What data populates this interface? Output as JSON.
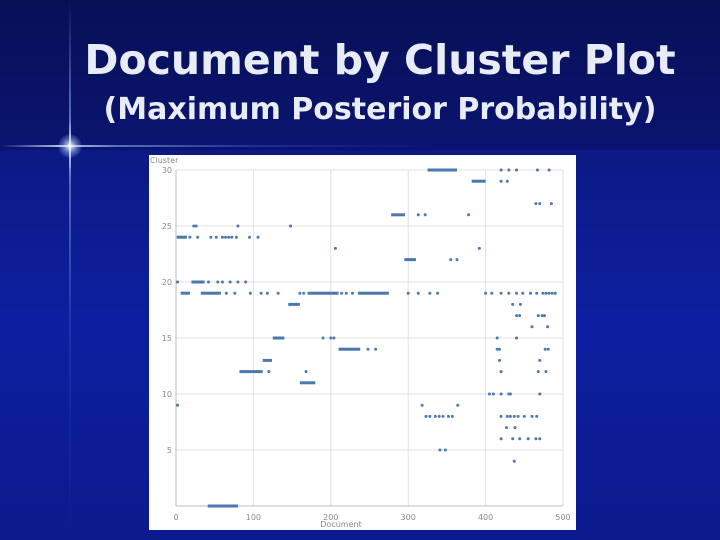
{
  "slide": {
    "title": "Document by Cluster Plot",
    "subtitle": "(Maximum Posterior Probability)"
  },
  "colors": {
    "point": "#4a78b0",
    "grid": "#e2e2e2",
    "axis_text": "#8a8a8a",
    "background": "#ffffff"
  },
  "chart_data": {
    "type": "scatter",
    "title": "",
    "xlabel": "Document",
    "ylabel": "Cluster",
    "xlim": [
      0,
      500
    ],
    "ylim": [
      0,
      30
    ],
    "x_ticks": [
      0,
      100,
      200,
      300,
      400,
      500
    ],
    "y_ticks": [
      5,
      10,
      15,
      20,
      25,
      30
    ],
    "x_tick_labels": [
      "0",
      "100",
      "200",
      "300",
      "400",
      "500"
    ],
    "y_tick_labels": [
      "5",
      "10",
      "15",
      "20",
      "25",
      "30"
    ],
    "grid": true,
    "series": [
      {
        "segments": [
          {
            "x0": 325,
            "x1": 363,
            "y": 30
          },
          {
            "x0": 382,
            "x1": 400,
            "y": 29
          },
          {
            "x0": 278,
            "x1": 296,
            "y": 26
          },
          {
            "x0": 1,
            "x1": 14,
            "y": 24
          },
          {
            "x0": 295,
            "x1": 310,
            "y": 22
          },
          {
            "x0": 20,
            "x1": 37,
            "y": 20
          },
          {
            "x0": 6,
            "x1": 18,
            "y": 19
          },
          {
            "x0": 32,
            "x1": 58,
            "y": 19
          },
          {
            "x0": 170,
            "x1": 210,
            "y": 19
          },
          {
            "x0": 235,
            "x1": 275,
            "y": 19
          },
          {
            "x0": 145,
            "x1": 160,
            "y": 18
          },
          {
            "x0": 125,
            "x1": 140,
            "y": 15
          },
          {
            "x0": 210,
            "x1": 238,
            "y": 14
          },
          {
            "x0": 112,
            "x1": 124,
            "y": 13
          },
          {
            "x0": 82,
            "x1": 112,
            "y": 12
          },
          {
            "x0": 160,
            "x1": 180,
            "y": 11
          },
          {
            "x0": 41,
            "x1": 80,
            "y": 0
          }
        ],
        "points": [
          [
            420,
            30
          ],
          [
            430,
            30
          ],
          [
            440,
            30
          ],
          [
            467,
            30
          ],
          [
            482,
            30
          ],
          [
            420,
            29
          ],
          [
            428,
            29
          ],
          [
            465,
            27
          ],
          [
            470,
            27
          ],
          [
            485,
            27
          ],
          [
            313,
            26
          ],
          [
            322,
            26
          ],
          [
            378,
            26
          ],
          [
            80,
            25
          ],
          [
            148,
            25
          ],
          [
            23,
            25
          ],
          [
            26,
            25
          ],
          [
            18,
            24
          ],
          [
            28,
            24
          ],
          [
            45,
            24
          ],
          [
            52,
            24
          ],
          [
            60,
            24
          ],
          [
            64,
            24
          ],
          [
            68,
            24
          ],
          [
            72,
            24
          ],
          [
            78,
            24
          ],
          [
            95,
            24
          ],
          [
            106,
            24
          ],
          [
            206,
            23
          ],
          [
            392,
            23
          ],
          [
            355,
            22
          ],
          [
            363,
            22
          ],
          [
            2,
            20
          ],
          [
            42,
            20
          ],
          [
            54,
            20
          ],
          [
            60,
            20
          ],
          [
            70,
            20
          ],
          [
            80,
            20
          ],
          [
            90,
            20
          ],
          [
            65,
            19
          ],
          [
            76,
            19
          ],
          [
            96,
            19
          ],
          [
            110,
            19
          ],
          [
            118,
            19
          ],
          [
            132,
            19
          ],
          [
            160,
            19
          ],
          [
            165,
            19
          ],
          [
            214,
            19
          ],
          [
            220,
            19
          ],
          [
            228,
            19
          ],
          [
            300,
            19
          ],
          [
            313,
            19
          ],
          [
            328,
            19
          ],
          [
            338,
            19
          ],
          [
            400,
            19
          ],
          [
            408,
            19
          ],
          [
            420,
            19
          ],
          [
            430,
            19
          ],
          [
            440,
            19
          ],
          [
            448,
            19
          ],
          [
            458,
            19
          ],
          [
            466,
            19
          ],
          [
            474,
            19
          ],
          [
            478,
            19
          ],
          [
            482,
            19
          ],
          [
            486,
            19
          ],
          [
            490,
            19
          ],
          [
            435,
            18
          ],
          [
            445,
            18
          ],
          [
            440,
            17
          ],
          [
            444,
            17
          ],
          [
            468,
            17
          ],
          [
            473,
            17
          ],
          [
            476,
            17
          ],
          [
            460,
            16
          ],
          [
            480,
            16
          ],
          [
            190,
            15
          ],
          [
            200,
            15
          ],
          [
            204,
            15
          ],
          [
            415,
            15
          ],
          [
            440,
            15
          ],
          [
            248,
            14
          ],
          [
            258,
            14
          ],
          [
            415,
            14
          ],
          [
            418,
            14
          ],
          [
            477,
            14
          ],
          [
            481,
            14
          ],
          [
            418,
            13
          ],
          [
            470,
            13
          ],
          [
            478,
            12
          ],
          [
            168,
            12
          ],
          [
            120,
            12
          ],
          [
            420,
            12
          ],
          [
            468,
            12
          ],
          [
            405,
            10
          ],
          [
            410,
            10
          ],
          [
            420,
            10
          ],
          [
            430,
            10
          ],
          [
            432,
            10
          ],
          [
            470,
            10
          ],
          [
            2,
            9
          ],
          [
            318,
            9
          ],
          [
            364,
            9
          ],
          [
            323,
            8
          ],
          [
            328,
            8
          ],
          [
            335,
            8
          ],
          [
            340,
            8
          ],
          [
            345,
            8
          ],
          [
            352,
            8
          ],
          [
            357,
            8
          ],
          [
            420,
            8
          ],
          [
            428,
            8
          ],
          [
            432,
            8
          ],
          [
            437,
            8
          ],
          [
            442,
            8
          ],
          [
            450,
            8
          ],
          [
            460,
            8
          ],
          [
            466,
            8
          ],
          [
            438,
            7
          ],
          [
            427,
            7
          ],
          [
            420,
            6
          ],
          [
            435,
            6
          ],
          [
            444,
            6
          ],
          [
            455,
            6
          ],
          [
            465,
            6
          ],
          [
            470,
            6
          ],
          [
            341,
            5
          ],
          [
            348,
            5
          ],
          [
            437,
            4
          ]
        ]
      }
    ]
  }
}
